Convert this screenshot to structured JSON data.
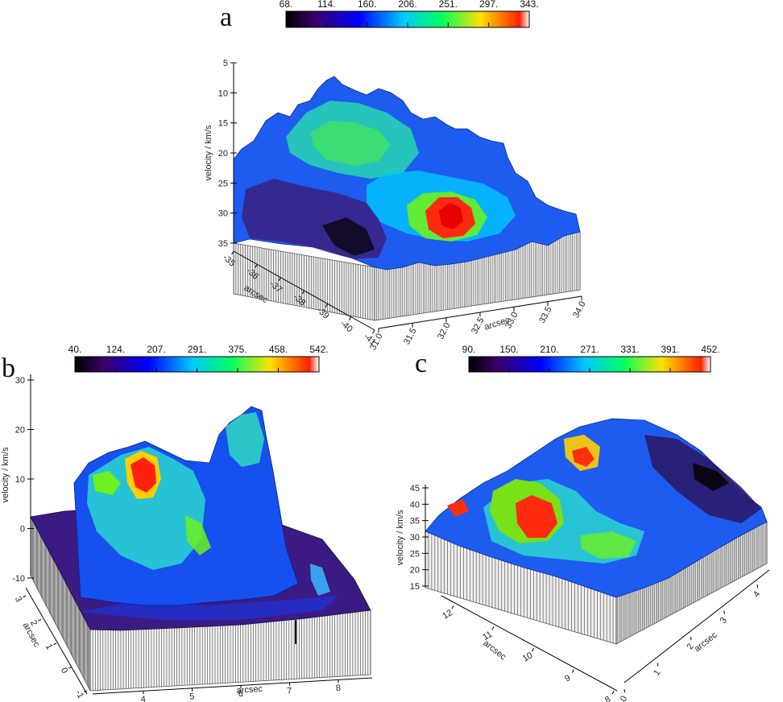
{
  "chart_data": [
    {
      "type": "heatmap",
      "panel_label": "a",
      "colorbar_ticks": [
        "68.",
        "114.",
        "160.",
        "206.",
        "251.",
        "297.",
        "343."
      ],
      "zlabel": "velocity / km/s",
      "z_ticks": [
        "5",
        "10",
        "15",
        "20",
        "25",
        "30",
        "35"
      ],
      "zlim": [
        5,
        35
      ],
      "xlabel": "arcsec",
      "x_ticks": [
        "31.0",
        "31.5",
        "32.0",
        "32.5",
        "33.0",
        "33.5",
        "34.0"
      ],
      "ylabel": "arcsec",
      "y_ticks": [
        "-35",
        "-36",
        "-37",
        "-38",
        "-39",
        "-40",
        "-41"
      ]
    },
    {
      "type": "heatmap",
      "panel_label": "b",
      "colorbar_ticks": [
        "40.",
        "124.",
        "207.",
        "291.",
        "375.",
        "458.",
        "542."
      ],
      "zlabel": "velocity / km/s",
      "z_ticks": [
        "30",
        "20",
        "10",
        "0",
        "-10"
      ],
      "zlim": [
        -10,
        30
      ],
      "xlabel": "arcsec",
      "x_ticks": [
        "4",
        "5",
        "6",
        "7",
        "8"
      ],
      "ylabel": "arcsec",
      "y_ticks": [
        "3",
        "2",
        "1",
        "0",
        "-1"
      ]
    },
    {
      "type": "heatmap",
      "panel_label": "c",
      "colorbar_ticks": [
        "90.",
        "150.",
        "210.",
        "271.",
        "331.",
        "391.",
        "452."
      ],
      "zlabel": "velocity / km/s",
      "z_ticks": [
        "45",
        "40",
        "35",
        "30",
        "25",
        "20",
        "15"
      ],
      "zlim": [
        15,
        45
      ],
      "xlabel": "arcsec",
      "x_ticks": [
        "12",
        "11",
        "10",
        "9",
        "8"
      ],
      "ylabel": "arcsec",
      "y_ticks": [
        "0",
        "1",
        "2",
        "3",
        "4"
      ]
    }
  ],
  "colormap": [
    "#000000",
    "#3a006a",
    "#0000ff",
    "#00c8ff",
    "#00ff60",
    "#ffe000",
    "#ff2000",
    "#ffffff"
  ]
}
